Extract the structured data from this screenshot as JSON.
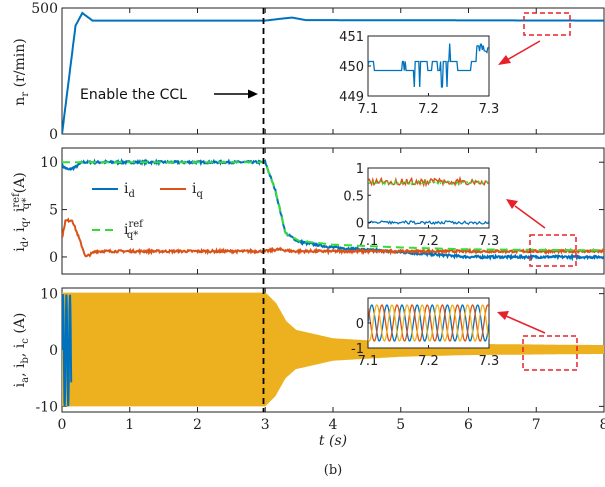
{
  "colors": {
    "blue": "#0072BD",
    "orange": "#D95319",
    "yellow": "#EDB120",
    "green": "#33DD33",
    "red": "#E8202A"
  },
  "annotation": "Enable the CCL",
  "xlabel": "t (s)",
  "caption": "(b)",
  "chart_data": [
    {
      "type": "line",
      "ylabel": "n_r (r/min)",
      "xlim": [
        0,
        8
      ],
      "ylim": [
        0,
        500
      ],
      "xticks": [
        "0",
        "1",
        "2",
        "3",
        "4",
        "5",
        "6",
        "7",
        "8"
      ],
      "yticks": [
        "0",
        "500"
      ],
      "series": [
        {
          "key": "nr",
          "x": [
            0,
            0.2,
            0.3,
            0.35,
            0.45,
            3,
            3.25,
            3.4,
            3.6,
            8
          ],
          "values": [
            0,
            430,
            480,
            470,
            450,
            450,
            458,
            462,
            452,
            450
          ]
        }
      ],
      "inset": {
        "xticks": [
          "7.1",
          "7.2",
          "7.3"
        ],
        "yticks": [
          "451",
          "450",
          "449"
        ],
        "xlim": [
          7.1,
          7.3
        ],
        "ylim": [
          449,
          451
        ]
      }
    },
    {
      "type": "line",
      "ylabel": "i_d, i_q, i_q*^ref (A)",
      "xlim": [
        0,
        8
      ],
      "ylim": [
        -1.8,
        11.5
      ],
      "yticks": [
        "0",
        "5",
        "10"
      ],
      "series": [
        {
          "key": "id",
          "name": "i_d",
          "x": [
            0,
            0.1,
            0.2,
            0.3,
            3,
            3.15,
            3.3,
            3.5,
            4,
            5,
            6,
            8
          ],
          "values": [
            9.6,
            9.2,
            9.5,
            10,
            10,
            7,
            2.5,
            1.6,
            1.0,
            0.5,
            0,
            0
          ]
        },
        {
          "key": "iq",
          "name": "i_q",
          "x": [
            0,
            0.05,
            0.15,
            0.25,
            0.35,
            0.5,
            3,
            3.2,
            3.4,
            8
          ],
          "values": [
            2,
            3.8,
            3.9,
            2,
            0,
            0.6,
            0.6,
            0.8,
            0.6,
            0.6
          ]
        },
        {
          "key": "iqref",
          "name": "i_q*^ref",
          "x": [
            0,
            3,
            3.15,
            3.3,
            3.5,
            4,
            5,
            6,
            8
          ],
          "values": [
            10,
            10,
            7,
            2.5,
            1.7,
            1.3,
            1.0,
            0.8,
            0.7
          ]
        }
      ],
      "inset": {
        "xticks": [
          "7.1",
          "7.2",
          "7.3"
        ],
        "yticks": [
          "1",
          "0.5",
          "0"
        ],
        "xlim": [
          7.1,
          7.3
        ],
        "ylim": [
          -0.1,
          1
        ]
      }
    },
    {
      "type": "line",
      "ylabel": "i_a, i_b, i_c (A)",
      "xlim": [
        0,
        8
      ],
      "ylim": [
        -11,
        11
      ],
      "yticks": [
        "-10",
        "0",
        "10"
      ],
      "envelope": {
        "x": [
          0,
          3,
          3.15,
          3.3,
          3.45,
          3.6,
          4,
          5,
          6,
          8
        ],
        "values": [
          10,
          10,
          8.2,
          5,
          3.4,
          3.0,
          1.9,
          1.2,
          0.9,
          0.7
        ]
      },
      "inset": {
        "xticks": [
          "7.1",
          "7.2",
          "7.3"
        ],
        "yticks": [
          "0",
          "-1"
        ],
        "xlim": [
          7.1,
          7.3
        ],
        "ylim": [
          -1,
          1
        ]
      }
    }
  ]
}
